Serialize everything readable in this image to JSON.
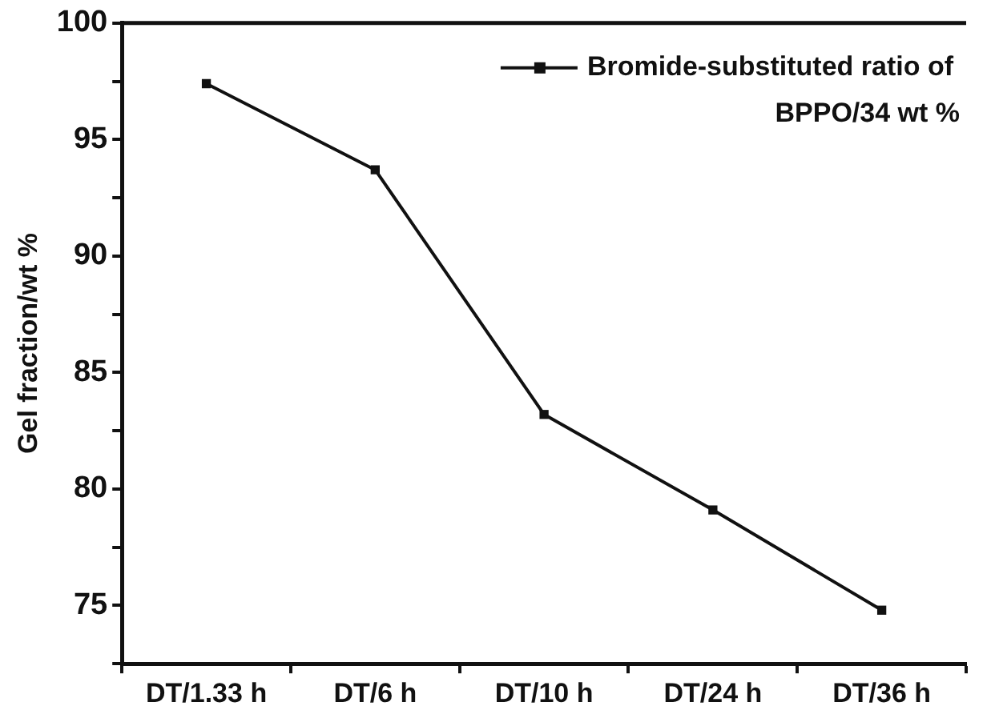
{
  "chart_data": {
    "type": "line",
    "ylabel": "Gel fraction/wt %",
    "categories": [
      "DT/1.33 h",
      "DT/6 h",
      "DT/10 h",
      "DT/24 h",
      "DT/36 h"
    ],
    "series": [
      {
        "name": "Bromide-substituted ratio of BPPO/34 wt %",
        "color": "#111111",
        "values": [
          97.4,
          93.7,
          83.2,
          79.1,
          74.8
        ]
      }
    ],
    "ylim": [
      72.5,
      100
    ],
    "yticks": [
      {
        "value": 72.5,
        "label": null
      },
      75,
      {
        "value": 77.5,
        "label": null
      },
      80,
      {
        "value": 82.5,
        "label": null
      },
      85,
      {
        "value": 87.5,
        "label": null
      },
      90,
      {
        "value": 92.5,
        "label": null
      },
      95,
      {
        "value": 97.5,
        "label": null
      },
      100
    ],
    "grid": false,
    "legend": "top right",
    "marker": "square",
    "line_style": "solid"
  }
}
